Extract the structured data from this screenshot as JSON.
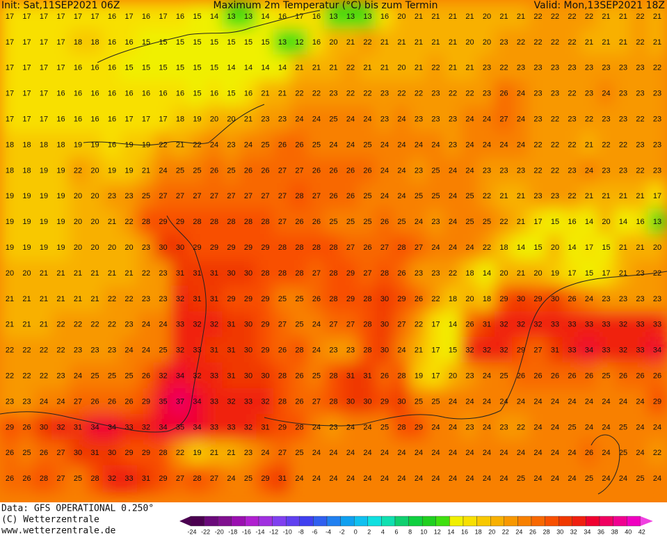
{
  "header": {
    "init": "Init: Sat,11SEP2021 06Z",
    "title": "Maximum 2m Temperatur (°C) bis zum Termin",
    "valid": "Valid: Mon,13SEP2021 18Z"
  },
  "footer": {
    "data": "Data: GFS OPERATIONAL 0.250°",
    "copyright": "(C) Wetterzentrale",
    "url": "www.wetterzentrale.de"
  },
  "legend": [
    {
      "value": -24,
      "color": "#4b0050"
    },
    {
      "value": -22,
      "color": "#6a0a7a"
    },
    {
      "value": -20,
      "color": "#80108f"
    },
    {
      "value": -18,
      "color": "#9a10b0"
    },
    {
      "value": -16,
      "color": "#b020d0"
    },
    {
      "value": -14,
      "color": "#a030e0"
    },
    {
      "value": -12,
      "color": "#8040f0"
    },
    {
      "value": -10,
      "color": "#6040f0"
    },
    {
      "value": -8,
      "color": "#4040f0"
    },
    {
      "value": -6,
      "color": "#3060f0"
    },
    {
      "value": -4,
      "color": "#2080f0"
    },
    {
      "value": -2,
      "color": "#10a0f0"
    },
    {
      "value": 0,
      "color": "#10c0f0"
    },
    {
      "value": 2,
      "color": "#10e0e0"
    },
    {
      "value": 4,
      "color": "#10e0b0"
    },
    {
      "value": 6,
      "color": "#10d070"
    },
    {
      "value": 8,
      "color": "#10d040"
    },
    {
      "value": 10,
      "color": "#20d020"
    },
    {
      "value": 12,
      "color": "#40e010"
    },
    {
      "value": 14,
      "color": "#f0f000"
    },
    {
      "value": 16,
      "color": "#f8e000"
    },
    {
      "value": 18,
      "color": "#f8c800"
    },
    {
      "value": 20,
      "color": "#f8b000"
    },
    {
      "value": 22,
      "color": "#f89800"
    },
    {
      "value": 24,
      "color": "#f88000"
    },
    {
      "value": 26,
      "color": "#f86800"
    },
    {
      "value": 28,
      "color": "#f85000"
    },
    {
      "value": 30,
      "color": "#f03800"
    },
    {
      "value": 32,
      "color": "#f02010"
    },
    {
      "value": 34,
      "color": "#f00030"
    },
    {
      "value": 36,
      "color": "#f00060"
    },
    {
      "value": 38,
      "color": "#f00090"
    },
    {
      "value": 40,
      "color": "#f000c0"
    },
    {
      "value": 42,
      "color": "#f040e0"
    }
  ],
  "map": {
    "rows": [
      [
        17,
        17,
        17,
        17,
        17,
        17,
        16,
        17,
        16,
        17,
        16,
        15,
        14,
        13,
        13,
        14,
        16,
        17,
        16,
        13,
        13,
        13,
        16,
        20,
        21,
        21,
        21,
        21,
        20,
        21,
        21,
        22,
        22,
        22,
        22,
        21,
        21,
        22,
        21
      ],
      [
        17,
        17,
        17,
        17,
        18,
        18,
        16,
        16,
        15,
        15,
        15,
        15,
        15,
        15,
        15,
        15,
        13,
        12,
        16,
        20,
        21,
        22,
        21,
        21,
        21,
        21,
        21,
        20,
        20,
        23,
        22,
        22,
        22,
        22,
        21,
        21,
        21,
        22,
        21
      ],
      [
        17,
        17,
        17,
        17,
        16,
        16,
        16,
        15,
        15,
        15,
        15,
        15,
        15,
        14,
        14,
        14,
        14,
        21,
        21,
        21,
        22,
        21,
        21,
        20,
        21,
        22,
        21,
        21,
        23,
        22,
        23,
        23,
        23,
        23,
        23,
        23,
        23,
        23,
        22
      ],
      [
        17,
        17,
        17,
        16,
        16,
        16,
        16,
        16,
        16,
        16,
        16,
        15,
        16,
        15,
        16,
        21,
        21,
        22,
        22,
        23,
        22,
        22,
        23,
        22,
        22,
        23,
        22,
        22,
        23,
        26,
        24,
        23,
        23,
        22,
        23,
        24,
        23,
        23,
        23
      ],
      [
        17,
        17,
        17,
        16,
        16,
        16,
        16,
        17,
        17,
        17,
        18,
        19,
        20,
        20,
        21,
        23,
        23,
        24,
        24,
        25,
        24,
        24,
        23,
        24,
        23,
        23,
        23,
        24,
        24,
        27,
        24,
        23,
        22,
        23,
        22,
        23,
        23,
        22,
        23
      ],
      [
        18,
        18,
        18,
        18,
        19,
        19,
        16,
        19,
        19,
        22,
        21,
        22,
        24,
        23,
        24,
        25,
        26,
        26,
        25,
        24,
        24,
        25,
        24,
        24,
        24,
        24,
        23,
        24,
        24,
        24,
        24,
        22,
        22,
        22,
        21,
        22,
        22,
        23,
        23
      ],
      [
        18,
        18,
        19,
        19,
        22,
        20,
        19,
        19,
        21,
        24,
        25,
        25,
        26,
        25,
        26,
        26,
        27,
        27,
        26,
        26,
        26,
        26,
        24,
        24,
        23,
        25,
        24,
        24,
        23,
        23,
        23,
        22,
        22,
        23,
        24,
        23,
        23,
        22,
        23
      ],
      [
        19,
        19,
        19,
        19,
        20,
        20,
        23,
        23,
        25,
        27,
        27,
        27,
        27,
        27,
        27,
        27,
        27,
        28,
        27,
        26,
        26,
        25,
        24,
        24,
        25,
        25,
        24,
        25,
        22,
        21,
        21,
        23,
        23,
        22,
        21,
        21,
        21,
        21,
        17
      ],
      [
        19,
        19,
        19,
        19,
        20,
        20,
        21,
        22,
        28,
        29,
        29,
        28,
        28,
        28,
        28,
        28,
        27,
        26,
        26,
        25,
        25,
        25,
        26,
        25,
        24,
        23,
        24,
        25,
        25,
        22,
        21,
        17,
        15,
        16,
        14,
        20,
        14,
        16,
        13
      ],
      [
        19,
        19,
        19,
        19,
        20,
        20,
        20,
        20,
        23,
        30,
        30,
        29,
        29,
        29,
        29,
        29,
        28,
        28,
        28,
        28,
        27,
        26,
        27,
        28,
        27,
        24,
        24,
        24,
        22,
        18,
        14,
        15,
        20,
        14,
        17,
        15,
        21,
        21,
        20
      ],
      [
        20,
        20,
        21,
        21,
        21,
        21,
        21,
        21,
        22,
        23,
        31,
        31,
        31,
        30,
        30,
        28,
        28,
        28,
        27,
        28,
        29,
        27,
        28,
        26,
        23,
        23,
        22,
        18,
        14,
        20,
        21,
        20,
        19,
        17,
        15,
        17,
        21,
        23,
        22
      ],
      [
        21,
        21,
        21,
        21,
        21,
        21,
        22,
        22,
        23,
        23,
        32,
        31,
        31,
        29,
        29,
        29,
        25,
        25,
        26,
        28,
        29,
        28,
        30,
        29,
        26,
        22,
        18,
        20,
        18,
        29,
        30,
        29,
        30,
        26,
        24,
        23,
        23,
        23,
        23
      ],
      [
        21,
        21,
        21,
        22,
        22,
        22,
        22,
        23,
        24,
        24,
        33,
        32,
        32,
        31,
        30,
        29,
        27,
        25,
        24,
        27,
        27,
        28,
        30,
        27,
        22,
        17,
        14,
        26,
        31,
        32,
        32,
        32,
        33,
        33,
        33,
        33,
        32,
        33,
        33
      ],
      [
        22,
        22,
        22,
        22,
        23,
        23,
        23,
        24,
        24,
        25,
        32,
        33,
        31,
        31,
        30,
        29,
        26,
        28,
        24,
        23,
        23,
        28,
        30,
        24,
        21,
        17,
        15,
        32,
        32,
        32,
        29,
        27,
        31,
        33,
        34,
        33,
        32,
        33,
        34
      ],
      [
        22,
        22,
        22,
        23,
        24,
        25,
        25,
        25,
        26,
        32,
        34,
        32,
        33,
        31,
        30,
        30,
        28,
        26,
        25,
        28,
        31,
        31,
        26,
        28,
        19,
        17,
        20,
        23,
        24,
        25,
        26,
        26,
        26,
        26,
        26,
        25,
        26,
        26,
        26
      ],
      [
        23,
        23,
        24,
        24,
        27,
        26,
        26,
        26,
        29,
        35,
        37,
        34,
        33,
        32,
        33,
        32,
        28,
        26,
        27,
        28,
        30,
        30,
        29,
        30,
        25,
        25,
        24,
        24,
        24,
        24,
        24,
        24,
        24,
        24,
        24,
        24,
        24,
        24,
        29
      ],
      [
        29,
        26,
        30,
        32,
        31,
        34,
        34,
        33,
        32,
        34,
        35,
        34,
        33,
        33,
        32,
        31,
        29,
        28,
        24,
        23,
        24,
        24,
        25,
        28,
        29,
        24,
        24,
        23,
        24,
        23,
        22,
        24,
        24,
        25,
        24,
        24,
        25,
        24,
        24
      ],
      [
        26,
        25,
        26,
        27,
        30,
        31,
        30,
        29,
        29,
        28,
        22,
        19,
        21,
        21,
        23,
        24,
        27,
        25,
        24,
        24,
        24,
        24,
        24,
        24,
        24,
        24,
        24,
        24,
        24,
        24,
        24,
        24,
        24,
        24,
        26,
        24,
        25,
        24,
        22
      ],
      [
        26,
        26,
        28,
        27,
        25,
        28,
        32,
        33,
        31,
        29,
        27,
        28,
        27,
        24,
        25,
        29,
        31,
        24,
        24,
        24,
        24,
        24,
        24,
        24,
        24,
        24,
        24,
        24,
        24,
        24,
        25,
        24,
        24,
        24,
        25,
        24,
        24,
        25,
        24
      ]
    ]
  }
}
